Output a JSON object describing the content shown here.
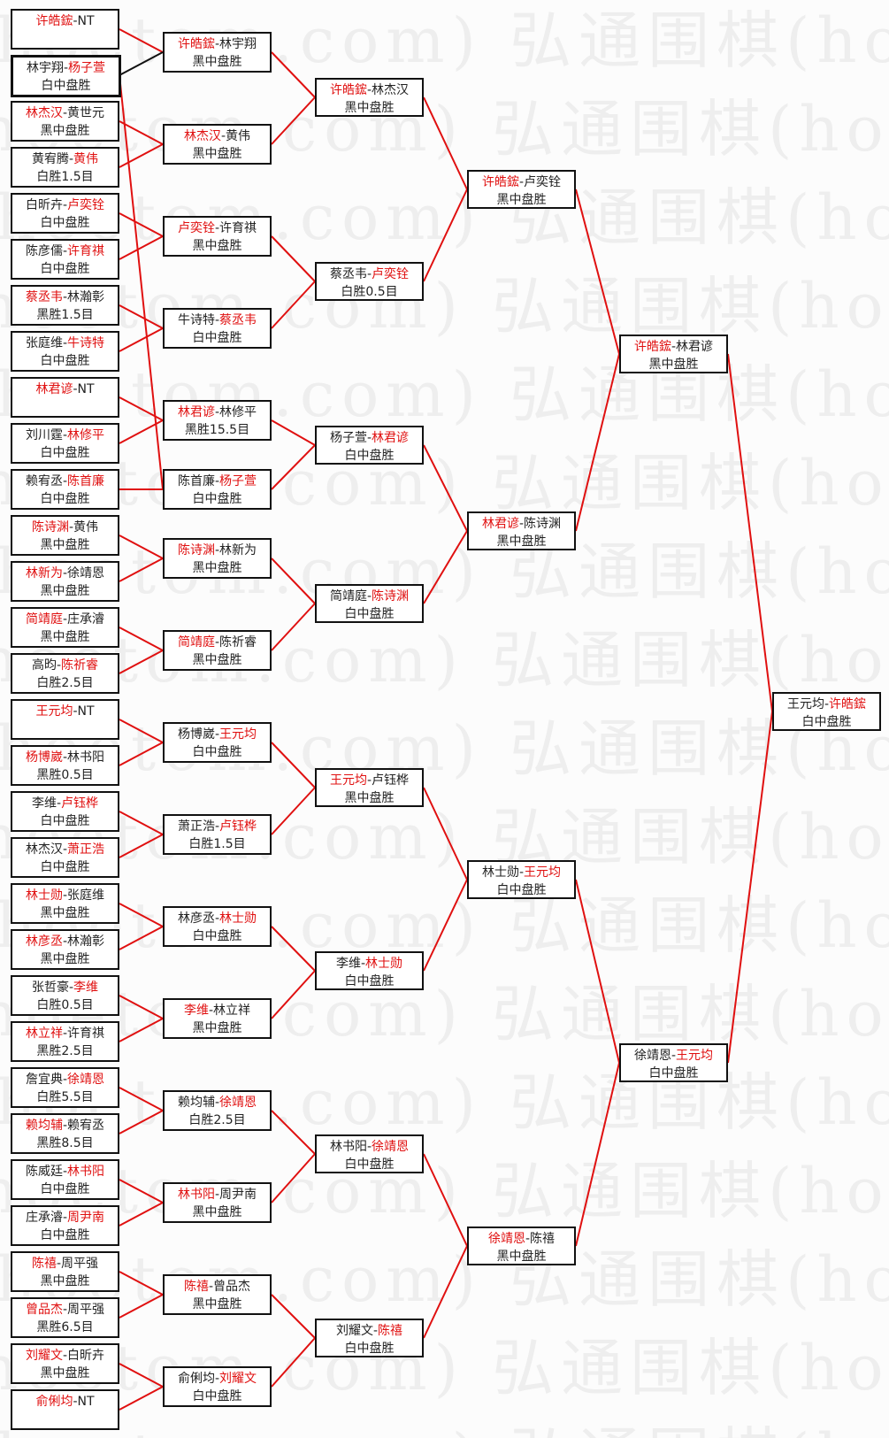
{
  "watermark": "(hoetom.com) 弘通围棋(hoetom.com) 弘通围棋",
  "colors": {
    "winner": "#e01010",
    "line": "#e01010",
    "border": "#111111"
  },
  "rounds": [
    [
      {
        "a": "许皓鋐",
        "b": "NT",
        "winner": 0,
        "result": ""
      },
      {
        "a": "林宇翔",
        "b": "杨子萱",
        "winner": 1,
        "result": "白中盘胜"
      },
      {
        "a": "林杰汉",
        "b": "黄世元",
        "winner": 0,
        "result": "黑中盘胜"
      },
      {
        "a": "黄宥腾",
        "b": "黄伟",
        "winner": 1,
        "result": "白胜1.5目"
      },
      {
        "a": "白昕卉",
        "b": "卢奕铨",
        "winner": 1,
        "result": "白中盘胜"
      },
      {
        "a": "陈彦儒",
        "b": "许育祺",
        "winner": 1,
        "result": "白中盘胜"
      },
      {
        "a": "蔡丞韦",
        "b": "林瀚彰",
        "winner": 0,
        "result": "黑胜1.5目"
      },
      {
        "a": "张庭维",
        "b": "牛诗特",
        "winner": 1,
        "result": "白中盘胜"
      },
      {
        "a": "林君谚",
        "b": "NT",
        "winner": 0,
        "result": ""
      },
      {
        "a": "刘川霆",
        "b": "林修平",
        "winner": 1,
        "result": "白中盘胜"
      },
      {
        "a": "赖宥丞",
        "b": "陈首廉",
        "winner": 1,
        "result": "白中盘胜"
      },
      {
        "a": "陈诗渊",
        "b": "黄伟",
        "winner": 0,
        "result": "黑中盘胜"
      },
      {
        "a": "林新为",
        "b": "徐靖恩",
        "winner": 0,
        "result": "黑中盘胜"
      },
      {
        "a": "简靖庭",
        "b": "庄承濬",
        "winner": 0,
        "result": "黑中盘胜"
      },
      {
        "a": "高昀",
        "b": "陈祈睿",
        "winner": 1,
        "result": "白胜2.5目"
      },
      {
        "a": "王元均",
        "b": "NT",
        "winner": 0,
        "result": ""
      },
      {
        "a": "杨博崴",
        "b": "林书阳",
        "winner": 0,
        "result": "黑胜0.5目"
      },
      {
        "a": "李维",
        "b": "卢钰桦",
        "winner": 1,
        "result": "白中盘胜"
      },
      {
        "a": "林杰汉",
        "b": "萧正浩",
        "winner": 1,
        "result": "白中盘胜"
      },
      {
        "a": "林士勋",
        "b": "张庭维",
        "winner": 0,
        "result": "黑中盘胜"
      },
      {
        "a": "林彦丞",
        "b": "林瀚彰",
        "winner": 0,
        "result": "黑中盘胜"
      },
      {
        "a": "张哲豪",
        "b": "李维",
        "winner": 1,
        "result": "白胜0.5目"
      },
      {
        "a": "林立祥",
        "b": "许育祺",
        "winner": 0,
        "result": "黑胜2.5目"
      },
      {
        "a": "詹宜典",
        "b": "徐靖恩",
        "winner": 1,
        "result": "白胜5.5目"
      },
      {
        "a": "赖均辅",
        "b": "赖宥丞",
        "winner": 0,
        "result": "黑胜8.5目"
      },
      {
        "a": "陈威廷",
        "b": "林书阳",
        "winner": 1,
        "result": "白中盘胜"
      },
      {
        "a": "庄承濬",
        "b": "周尹南",
        "winner": 1,
        "result": "白中盘胜"
      },
      {
        "a": "陈禧",
        "b": "周平强",
        "winner": 0,
        "result": "黑中盘胜"
      },
      {
        "a": "曾品杰",
        "b": "周平强",
        "winner": 0,
        "result": "黑胜6.5目"
      },
      {
        "a": "刘耀文",
        "b": "白昕卉",
        "winner": 0,
        "result": "黑中盘胜"
      },
      {
        "a": "俞俐均",
        "b": "NT",
        "winner": 0,
        "result": ""
      }
    ],
    [
      {
        "a": "许皓鋐",
        "b": "林宇翔",
        "winner": 0,
        "result": "黑中盘胜"
      },
      {
        "a": "林杰汉",
        "b": "黄伟",
        "winner": 0,
        "result": "黑中盘胜"
      },
      {
        "a": "卢奕铨",
        "b": "许育祺",
        "winner": 0,
        "result": "黑中盘胜"
      },
      {
        "a": "牛诗特",
        "b": "蔡丞韦",
        "winner": 1,
        "result": "白中盘胜"
      },
      {
        "a": "林君谚",
        "b": "林修平",
        "winner": 0,
        "result": "黑胜15.5目"
      },
      {
        "a": "陈首廉",
        "b": "杨子萱",
        "winner": 1,
        "result": "白中盘胜"
      },
      {
        "a": "陈诗渊",
        "b": "林新为",
        "winner": 0,
        "result": "黑中盘胜"
      },
      {
        "a": "简靖庭",
        "b": "陈祈睿",
        "winner": 0,
        "result": "黑中盘胜"
      },
      {
        "a": "杨博崴",
        "b": "王元均",
        "winner": 1,
        "result": "白中盘胜"
      },
      {
        "a": "萧正浩",
        "b": "卢钰桦",
        "winner": 1,
        "result": "白胜1.5目"
      },
      {
        "a": "林彦丞",
        "b": "林士勋",
        "winner": 1,
        "result": "白中盘胜"
      },
      {
        "a": "李维",
        "b": "林立祥",
        "winner": 0,
        "result": "黑中盘胜"
      },
      {
        "a": "赖均辅",
        "b": "徐靖恩",
        "winner": 1,
        "result": "白胜2.5目"
      },
      {
        "a": "林书阳",
        "b": "周尹南",
        "winner": 0,
        "result": "黑中盘胜"
      },
      {
        "a": "陈禧",
        "b": "曾品杰",
        "winner": 0,
        "result": "黑中盘胜"
      },
      {
        "a": "俞俐均",
        "b": "刘耀文",
        "winner": 1,
        "result": "白中盘胜"
      }
    ],
    [
      {
        "a": "许皓鋐",
        "b": "林杰汉",
        "winner": 0,
        "result": "黑中盘胜"
      },
      {
        "a": "蔡丞韦",
        "b": "卢奕铨",
        "winner": 1,
        "result": "白胜0.5目"
      },
      {
        "a": "杨子萱",
        "b": "林君谚",
        "winner": 1,
        "result": "白中盘胜"
      },
      {
        "a": "简靖庭",
        "b": "陈诗渊",
        "winner": 1,
        "result": "白中盘胜"
      },
      {
        "a": "王元均",
        "b": "卢钰桦",
        "winner": 0,
        "result": "黑中盘胜"
      },
      {
        "a": "李维",
        "b": "林士勋",
        "winner": 1,
        "result": "白中盘胜"
      },
      {
        "a": "林书阳",
        "b": "徐靖恩",
        "winner": 1,
        "result": "白中盘胜"
      },
      {
        "a": "刘耀文",
        "b": "陈禧",
        "winner": 1,
        "result": "白中盘胜"
      }
    ],
    [
      {
        "a": "许皓鋐",
        "b": "卢奕铨",
        "winner": 0,
        "result": "黑中盘胜"
      },
      {
        "a": "林君谚",
        "b": "陈诗渊",
        "winner": 0,
        "result": "黑中盘胜"
      },
      {
        "a": "林士勋",
        "b": "王元均",
        "winner": 1,
        "result": "白中盘胜"
      },
      {
        "a": "徐靖恩",
        "b": "陈禧",
        "winner": 0,
        "result": "黑中盘胜"
      }
    ],
    [
      {
        "a": "许皓鋐",
        "b": "林君谚",
        "winner": 0,
        "result": "黑中盘胜"
      },
      {
        "a": "徐靖恩",
        "b": "王元均",
        "winner": 1,
        "result": "白中盘胜"
      }
    ],
    [
      {
        "a": "王元均",
        "b": "许皓鋐",
        "winner": 1,
        "result": "白中盘胜"
      }
    ]
  ]
}
